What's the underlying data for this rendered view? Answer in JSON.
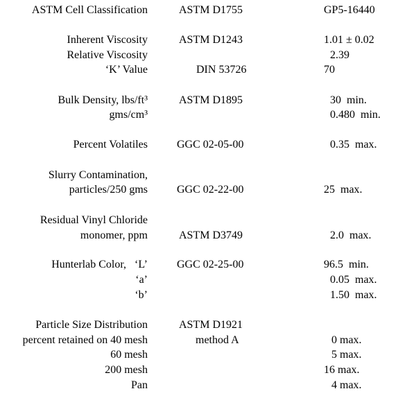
{
  "table": {
    "rows": [
      {
        "property": "ASTM Cell Classification",
        "method": "ASTM D1755",
        "value": "GP5-16440"
      },
      {
        "property": "Inherent Viscosity",
        "method": "ASTM D1243",
        "value": "1.01 ± 0.02"
      },
      {
        "property": "Relative Viscosity",
        "value": "2.39"
      },
      {
        "property": "‘K’ Value",
        "method": "DIN 53726",
        "value": "70"
      },
      {
        "property": "Bulk Density, lbs/ft³",
        "method": "ASTM D1895",
        "value": "30  min."
      },
      {
        "property": "gms/cm³",
        "value": "0.480  min."
      },
      {
        "property": "Percent Volatiles",
        "method": "GGC 02-05-00",
        "value": "0.35  max."
      },
      {
        "property": "Slurry Contamination,"
      },
      {
        "property": "particles/250 gms",
        "method": "GGC 02-22-00",
        "value": "25  max."
      },
      {
        "property": "Residual Vinyl Chloride"
      },
      {
        "property": "monomer, ppm",
        "method": "ASTM D3749",
        "value": "2.0  max."
      },
      {
        "property": "Hunterlab Color,   ‘L’",
        "method": "GGC 02-25-00",
        "value": "96.5  min."
      },
      {
        "property": "‘a’",
        "value": "0.05  max."
      },
      {
        "property": "‘b’",
        "value": "1.50  max."
      },
      {
        "property": "Particle Size Distribution",
        "method": "ASTM D1921"
      },
      {
        "property": "percent retained on 40 mesh",
        "method": "method A",
        "value": "0 max."
      },
      {
        "property": "60 mesh",
        "value": "5 max."
      },
      {
        "property": "200 mesh",
        "value": "16 max."
      },
      {
        "property": "Pan",
        "value": "4 max."
      }
    ]
  }
}
